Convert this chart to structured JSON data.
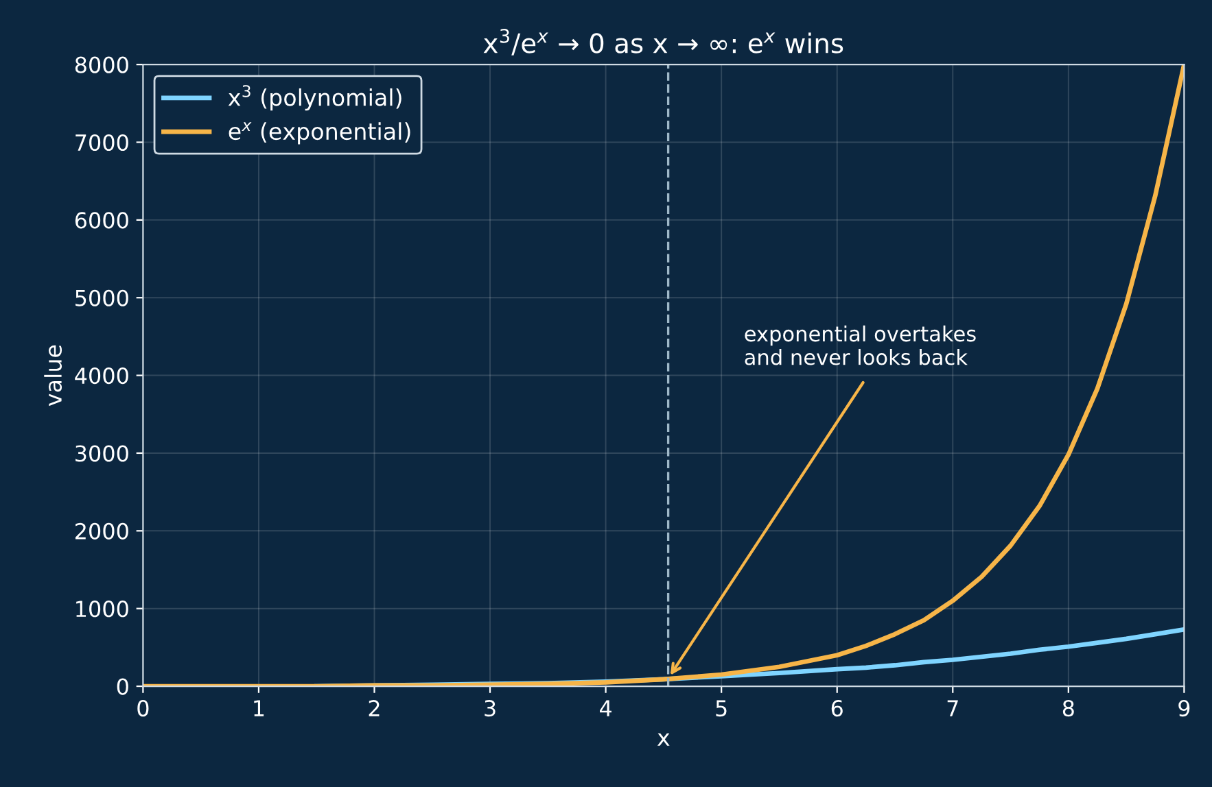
{
  "chart_data": {
    "type": "line",
    "title": "x$^{3}$/e$^{x}$ → 0 as x → ∞: e$^{x}$ wins",
    "xlabel": "x",
    "ylabel": "value",
    "x": [
      0,
      0.5,
      1,
      1.5,
      2,
      2.5,
      3,
      3.5,
      4,
      4.5,
      5,
      5.5,
      6,
      6.25,
      6.5,
      6.75,
      7,
      7.25,
      7.5,
      7.75,
      8,
      8.25,
      8.5,
      8.75,
      9
    ],
    "series": [
      {
        "name": "x$^{3}$ (polynomial)",
        "color": "#7fd4ff",
        "values": [
          null,
          null,
          null,
          0,
          10,
          20,
          30,
          40,
          60,
          90,
          130,
          170,
          220,
          240,
          270,
          310,
          340,
          380,
          420,
          470,
          510,
          560,
          610,
          670,
          730
        ]
      },
      {
        "name": "e$^{x}$ (exponential)",
        "color": "#f7b548",
        "values": [
          0,
          0,
          0,
          0,
          10,
          10,
          20,
          30,
          50,
          90,
          150,
          250,
          400,
          520,
          670,
          850,
          1100,
          1410,
          1810,
          2320,
          2980,
          3830,
          4920,
          6310,
          8000
        ]
      }
    ],
    "xlim": [
      0,
      9
    ],
    "xticks": [
      0,
      1,
      2,
      3,
      4,
      5,
      6,
      7,
      8,
      9
    ],
    "ylim": [
      0,
      8000
    ],
    "yticks": [
      0,
      1000,
      2000,
      3000,
      4000,
      5000,
      6000,
      7000,
      8000
    ],
    "grid": true,
    "legend": "top left",
    "marker": "none",
    "line_style": "solid",
    "ref_lines": [
      {
        "axis": "x",
        "value": 4.54,
        "color": "#9fb8c8",
        "line_style": "dashed"
      }
    ],
    "annotations": [
      {
        "text": "exponential overtakes\nand never looks back",
        "x": 4.54,
        "y": 100
      }
    ]
  }
}
